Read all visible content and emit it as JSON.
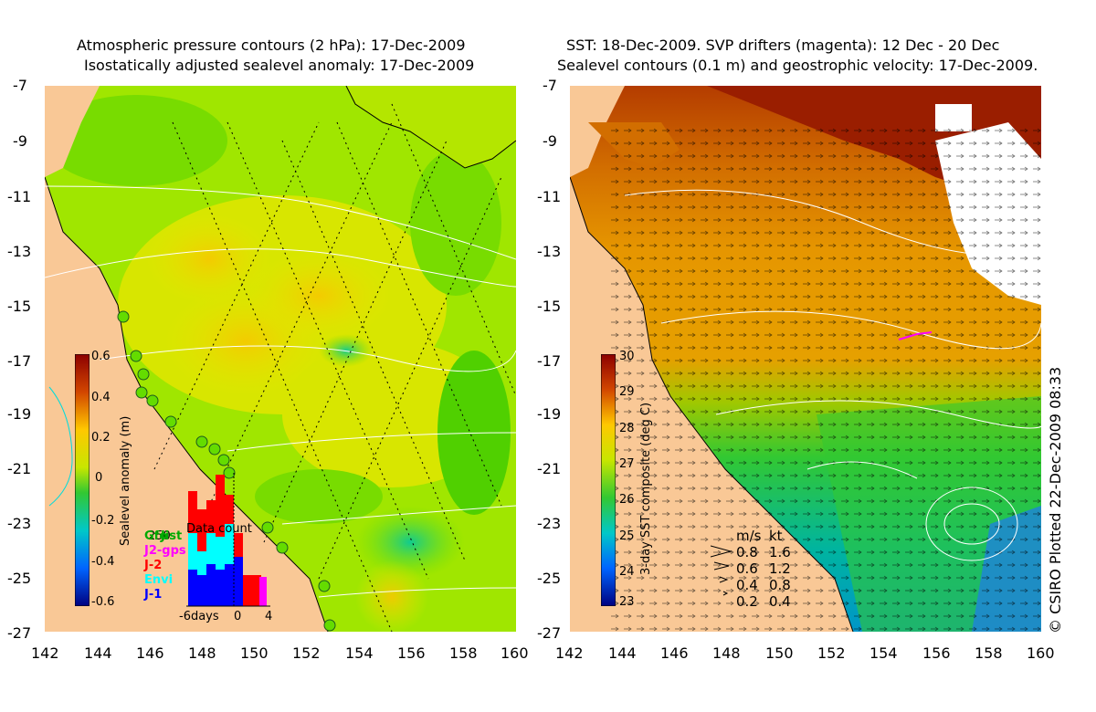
{
  "left_panel": {
    "title_line1": "Atmospheric pressure contours (2 hPa): 17-Dec-2009",
    "title_line2": "Isostatically adjusted sealevel anomaly: 17-Dec-2009",
    "y_ticks": [
      "-7",
      "-9",
      "-11",
      "-13",
      "-15",
      "-17",
      "-19",
      "-21",
      "-23",
      "-25",
      "-27"
    ],
    "x_ticks": [
      "142",
      "144",
      "146",
      "148",
      "150",
      "152",
      "154",
      "156",
      "158",
      "160"
    ],
    "colorbar": {
      "label": "Sealevel anomaly (m)",
      "ticks": [
        "0.6",
        "0.4",
        "0.2",
        "0",
        "-0.2",
        "-0.4",
        "-0.6"
      ],
      "range": [
        -0.6,
        0.6
      ]
    },
    "data_count": {
      "title": "Data count",
      "y_label": "250",
      "x_ticks": [
        "-6days",
        "0",
        "4"
      ],
      "legend": [
        {
          "label": "Gfo",
          "color": "#00aa00"
        },
        {
          "label": "J2-gps",
          "color": "#ff00ff"
        },
        {
          "label": "J-2",
          "color": "#ff0000"
        },
        {
          "label": "Envi",
          "color": "#00ffff"
        },
        {
          "label": "J-1",
          "color": "#0000ff"
        }
      ],
      "legend_overlap_text": "Jist"
    },
    "colors": {
      "land": "#f9c896",
      "sea_low": "#00c8c8",
      "sea_mid": "#64dc00",
      "sea_high": "#e6e600",
      "anomaly_pos": "#ffb400"
    }
  },
  "right_panel": {
    "title_line1": "SST: 18-Dec-2009. SVP drifters (magenta): 12 Dec - 20 Dec",
    "title_line2": "Sealevel contours (0.1 m) and geostrophic velocity: 17-Dec-2009.",
    "y_ticks": [
      "-7",
      "-9",
      "-11",
      "-13",
      "-15",
      "-17",
      "-19",
      "-21",
      "-23",
      "-25",
      "-27"
    ],
    "x_ticks": [
      "142",
      "144",
      "146",
      "148",
      "150",
      "152",
      "154",
      "156",
      "158",
      "160"
    ],
    "colorbar": {
      "label": "3-day SST composite (deg C)",
      "ticks": [
        "30",
        "29",
        "28",
        "27",
        "26",
        "25",
        "24",
        "23"
      ],
      "range": [
        23,
        30
      ]
    },
    "velocity_legend": {
      "headers": [
        "m/s",
        "kt"
      ],
      "rows": [
        {
          "ms": "0.8",
          "kt": "1.6"
        },
        {
          "ms": "0.6",
          "kt": "1.2"
        },
        {
          "ms": "0.4",
          "kt": "0.8"
        },
        {
          "ms": "0.2",
          "kt": "0.4"
        }
      ]
    },
    "colors": {
      "land": "#f9c896",
      "warm": "#c85000",
      "hot": "#a01400",
      "mid": "#e6a000",
      "cool": "#32c832",
      "cold": "#00a0c8"
    }
  },
  "credit": "© CSIRO Plotted 22-Dec-2009 08:33"
}
